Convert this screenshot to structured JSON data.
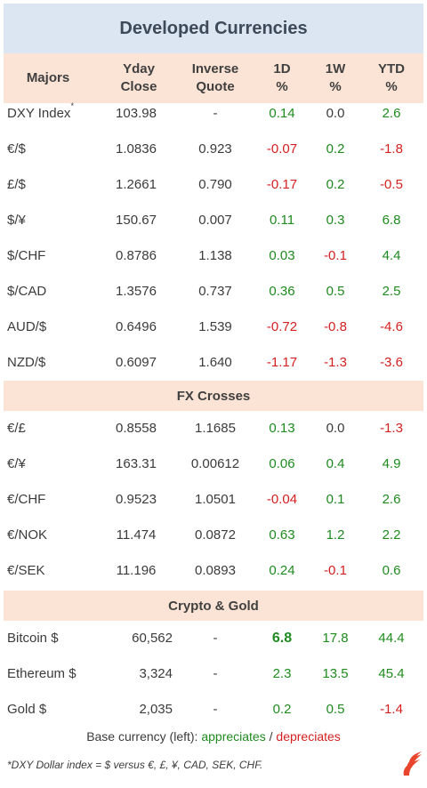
{
  "title": "Developed Currencies",
  "columns": {
    "majors": "Majors",
    "yday_1": "Yday",
    "yday_2": "Close",
    "inv_1": "Inverse",
    "inv_2": "Quote",
    "d1_1": "1D",
    "d1_2": "%",
    "w1_1": "1W",
    "w1_2": "%",
    "ytd_1": "YTD",
    "ytd_2": "%"
  },
  "majors": [
    {
      "name": "DXY Index",
      "sup": "*",
      "close": "103.98",
      "inverse": "-",
      "d1": "0.14",
      "w1": "0.0",
      "ytd": "2.6"
    },
    {
      "name": "€/$",
      "close": "1.0836",
      "inverse": "0.923",
      "d1": "-0.07",
      "w1": "0.2",
      "ytd": "-1.8"
    },
    {
      "name": "£/$",
      "close": "1.2661",
      "inverse": "0.790",
      "d1": "-0.17",
      "w1": "0.2",
      "ytd": "-0.5"
    },
    {
      "name": "$/¥",
      "close": "150.67",
      "inverse": "0.007",
      "d1": "0.11",
      "w1": "0.3",
      "ytd": "6.8"
    },
    {
      "name": "$/CHF",
      "close": "0.8786",
      "inverse": "1.138",
      "d1": "0.03",
      "w1": "-0.1",
      "ytd": "4.4"
    },
    {
      "name": "$/CAD",
      "close": "1.3576",
      "inverse": "0.737",
      "d1": "0.36",
      "w1": "0.5",
      "ytd": "2.5"
    },
    {
      "name": "AUD/$",
      "close": "0.6496",
      "inverse": "1.539",
      "d1": "-0.72",
      "w1": "-0.8",
      "ytd": "-4.6"
    },
    {
      "name": "NZD/$",
      "close": "0.6097",
      "inverse": "1.640",
      "d1": "-1.17",
      "w1": "-1.3",
      "ytd": "-3.6"
    }
  ],
  "crosses_title": "FX Crosses",
  "crosses": [
    {
      "name": "€/£",
      "close": "0.8558",
      "inverse": "1.1685",
      "d1": "0.13",
      "w1": "0.0",
      "ytd": "-1.3"
    },
    {
      "name": "€/¥",
      "close": "163.31",
      "inverse": "0.00612",
      "d1": "0.06",
      "w1": "0.4",
      "ytd": "4.9"
    },
    {
      "name": "€/CHF",
      "close": "0.9523",
      "inverse": "1.0501",
      "d1": "-0.04",
      "w1": "0.1",
      "ytd": "2.6"
    },
    {
      "name": "€/NOK",
      "close": "11.474",
      "inverse": "0.0872",
      "d1": "0.63",
      "w1": "1.2",
      "ytd": "2.2"
    },
    {
      "name": "€/SEK",
      "close": "11.196",
      "inverse": "0.0893",
      "d1": "0.24",
      "w1": "-0.1",
      "ytd": "0.6"
    }
  ],
  "crypto_title": "Crypto  &  Gold",
  "crypto": [
    {
      "name": "Bitcoin $",
      "close": "60,562",
      "inverse": "-",
      "d1": "6.8",
      "w1": "17.8",
      "ytd": "44.4",
      "bold_d1": true
    },
    {
      "name": "Ethereum $",
      "close": "3,324",
      "inverse": "-",
      "d1": "2.3",
      "w1": "13.5",
      "ytd": "45.4"
    },
    {
      "name": "Gold $",
      "close": "2,035",
      "inverse": "-",
      "d1": "0.2",
      "w1": "0.5",
      "ytd": "-1.4"
    }
  ],
  "legend": {
    "prefix": "Base currency (left): ",
    "up": "appreciates",
    "sep": " / ",
    "down": "depreciates"
  },
  "footnote": "*DXY Dollar index = $ versus €, £, ¥, CAD, SEK, CHF.",
  "colors": {
    "positive": "#1f8a1f",
    "negative": "#d42020",
    "header_bg": "#fbe4d5",
    "title_bg": "#dce6f2"
  },
  "logo_icon": "flame-logo-icon"
}
